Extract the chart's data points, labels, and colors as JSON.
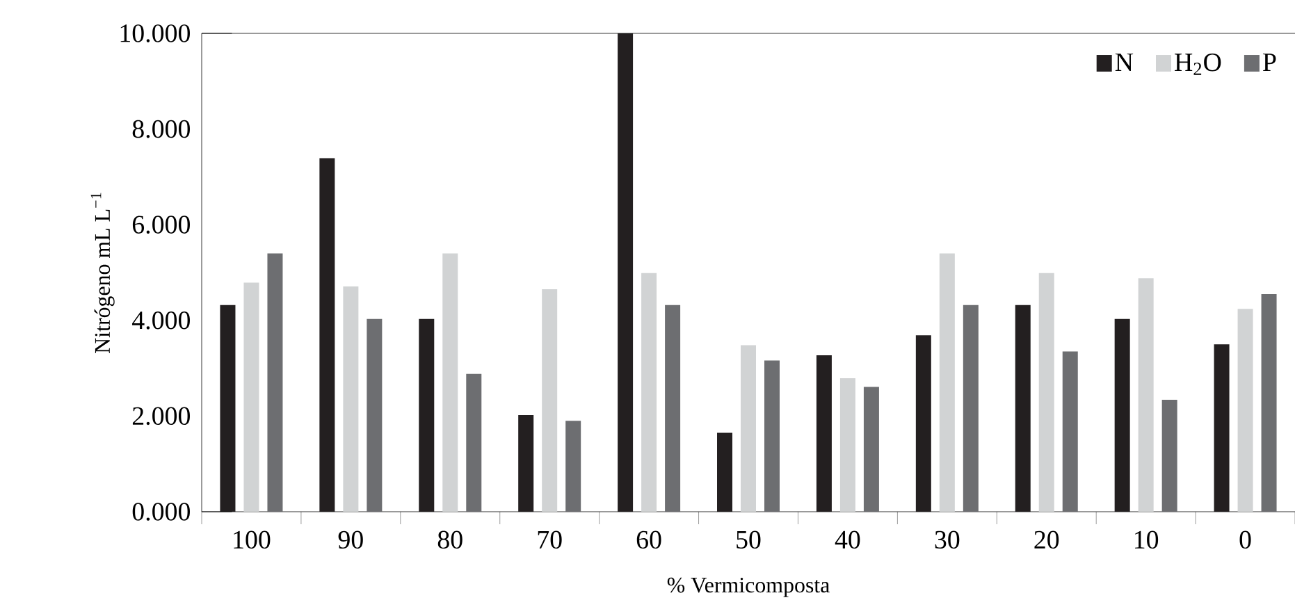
{
  "chart_data": {
    "type": "bar",
    "xlabel": "% Vermicomposta",
    "ylabel": "Nitrógeno mL L$^{−1}$",
    "categories": [
      "100",
      "90",
      "80",
      "70",
      "60",
      "50",
      "40",
      "30",
      "20",
      "10",
      "0"
    ],
    "series": [
      {
        "name": "N",
        "color": "#231f20",
        "values": [
          4.32,
          7.39,
          4.03,
          2.02,
          10.0,
          1.65,
          3.27,
          3.69,
          4.32,
          4.03,
          3.5
        ]
      },
      {
        "name": "H$_{2}$O",
        "color": "#d1d3d4",
        "values": [
          4.79,
          4.71,
          5.4,
          4.65,
          4.99,
          3.48,
          2.79,
          5.4,
          4.99,
          4.88,
          4.24
        ]
      },
      {
        "name": "P",
        "color": "#6d6e71",
        "values": [
          5.4,
          4.03,
          2.88,
          1.9,
          4.32,
          3.16,
          2.61,
          4.32,
          3.35,
          2.34,
          4.55
        ]
      }
    ],
    "ylim": [
      0,
      10
    ],
    "yticks": [
      {
        "value": 0,
        "label": "0.000"
      },
      {
        "value": 2,
        "label": "2.000"
      },
      {
        "value": 4,
        "label": "4.000"
      },
      {
        "value": 6,
        "label": "6.000"
      },
      {
        "value": 8,
        "label": "8.000"
      },
      {
        "value": 10,
        "label": "10.000"
      }
    ],
    "legend": "top right"
  }
}
